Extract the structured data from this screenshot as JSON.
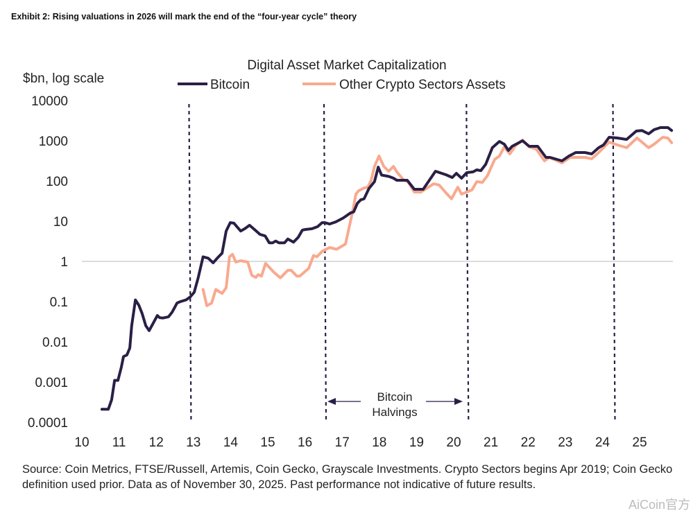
{
  "header": {
    "exhibit_title": "Exhibit 2: Rising valuations in 2026 will mark the end of the “four-year cycle” theory"
  },
  "chart_data": {
    "type": "line",
    "title": "Digital Asset Market Capitalization",
    "ylabel": "$bn, log scale",
    "xlabel": "",
    "y_scale": "log",
    "ylim": [
      0.0001,
      10000
    ],
    "xlim": [
      2010,
      2026
    ],
    "y_ticks": [
      "10000",
      "1000",
      "100",
      "10",
      "1",
      "0.1",
      "0.01",
      "0.001",
      "0.0001"
    ],
    "y_tick_values": [
      10000,
      1000,
      100,
      10,
      1,
      0.1,
      0.01,
      0.001,
      0.0001
    ],
    "x_ticks": [
      "10",
      "11",
      "12",
      "13",
      "14",
      "15",
      "16",
      "17",
      "18",
      "19",
      "20",
      "21",
      "22",
      "23",
      "24",
      "25"
    ],
    "x_tick_values": [
      2010,
      2011,
      2012,
      2013,
      2014,
      2015,
      2016,
      2017,
      2018,
      2019,
      2020,
      2021,
      2022,
      2023,
      2024,
      2025
    ],
    "reference_line": 1,
    "grid": false,
    "legend_placement": "top",
    "halvings": [
      2012.9,
      2016.53,
      2020.36,
      2024.3
    ],
    "annotation": {
      "line1": "Bitcoin",
      "line2": "Halvings"
    },
    "series": [
      {
        "name": "Bitcoin",
        "color": "#2a1f45",
        "points": [
          [
            2010.54,
            0.00021
          ],
          [
            2010.71,
            0.00021
          ],
          [
            2010.8,
            0.00036
          ],
          [
            2010.88,
            0.0011
          ],
          [
            2010.97,
            0.0011
          ],
          [
            2011.06,
            0.0023
          ],
          [
            2011.12,
            0.0043
          ],
          [
            2011.21,
            0.0047
          ],
          [
            2011.29,
            0.007
          ],
          [
            2011.34,
            0.025
          ],
          [
            2011.44,
            0.11
          ],
          [
            2011.53,
            0.082
          ],
          [
            2011.62,
            0.051
          ],
          [
            2011.72,
            0.025
          ],
          [
            2011.81,
            0.019
          ],
          [
            2011.88,
            0.025
          ],
          [
            2012.03,
            0.045
          ],
          [
            2012.09,
            0.04
          ],
          [
            2012.18,
            0.039
          ],
          [
            2012.33,
            0.042
          ],
          [
            2012.43,
            0.055
          ],
          [
            2012.56,
            0.092
          ],
          [
            2012.65,
            0.1
          ],
          [
            2012.8,
            0.11
          ],
          [
            2012.91,
            0.13
          ],
          [
            2013.02,
            0.17
          ],
          [
            2013.13,
            0.4
          ],
          [
            2013.26,
            1.3
          ],
          [
            2013.4,
            1.2
          ],
          [
            2013.53,
            0.92
          ],
          [
            2013.64,
            1.2
          ],
          [
            2013.77,
            1.6
          ],
          [
            2013.88,
            5.7
          ],
          [
            2013.99,
            9.2
          ],
          [
            2014.09,
            8.9
          ],
          [
            2014.27,
            5.7
          ],
          [
            2014.38,
            6.5
          ],
          [
            2014.51,
            7.9
          ],
          [
            2014.66,
            6.0
          ],
          [
            2014.79,
            4.7
          ],
          [
            2014.93,
            4.3
          ],
          [
            2015.04,
            2.9
          ],
          [
            2015.13,
            2.9
          ],
          [
            2015.21,
            3.2
          ],
          [
            2015.3,
            2.9
          ],
          [
            2015.45,
            2.9
          ],
          [
            2015.54,
            3.6
          ],
          [
            2015.69,
            3.0
          ],
          [
            2015.82,
            4.0
          ],
          [
            2015.93,
            6.0
          ],
          [
            2016.01,
            6.2
          ],
          [
            2016.19,
            6.5
          ],
          [
            2016.34,
            7.3
          ],
          [
            2016.46,
            9.2
          ],
          [
            2016.53,
            9.2
          ],
          [
            2016.66,
            8.5
          ],
          [
            2016.83,
            9.6
          ],
          [
            2017.03,
            12
          ],
          [
            2017.22,
            16
          ],
          [
            2017.31,
            17
          ],
          [
            2017.41,
            28
          ],
          [
            2017.5,
            34
          ],
          [
            2017.59,
            36
          ],
          [
            2017.72,
            65
          ],
          [
            2017.87,
            96
          ],
          [
            2017.97,
            220
          ],
          [
            2018.06,
            140
          ],
          [
            2018.25,
            130
          ],
          [
            2018.38,
            117
          ],
          [
            2018.47,
            104
          ],
          [
            2018.75,
            104
          ],
          [
            2018.94,
            62
          ],
          [
            2019.18,
            62
          ],
          [
            2019.51,
            174
          ],
          [
            2019.79,
            143
          ],
          [
            2019.96,
            122
          ],
          [
            2020.07,
            155
          ],
          [
            2020.21,
            117
          ],
          [
            2020.35,
            161
          ],
          [
            2020.52,
            168
          ],
          [
            2020.62,
            189
          ],
          [
            2020.73,
            181
          ],
          [
            2020.86,
            259
          ],
          [
            2021.04,
            673
          ],
          [
            2021.23,
            962
          ],
          [
            2021.36,
            820
          ],
          [
            2021.47,
            574
          ],
          [
            2021.57,
            728
          ],
          [
            2021.85,
            1000
          ],
          [
            2022.03,
            728
          ],
          [
            2022.26,
            728
          ],
          [
            2022.48,
            386
          ],
          [
            2022.59,
            386
          ],
          [
            2022.91,
            316
          ],
          [
            2023.1,
            418
          ],
          [
            2023.28,
            509
          ],
          [
            2023.53,
            509
          ],
          [
            2023.71,
            470
          ],
          [
            2023.9,
            673
          ],
          [
            2024.03,
            789
          ],
          [
            2024.18,
            1220
          ],
          [
            2024.4,
            1170
          ],
          [
            2024.65,
            1080
          ],
          [
            2024.91,
            1740
          ],
          [
            2025.06,
            1800
          ],
          [
            2025.24,
            1490
          ],
          [
            2025.39,
            1890
          ],
          [
            2025.56,
            2130
          ],
          [
            2025.76,
            2130
          ],
          [
            2025.86,
            1800
          ]
        ]
      },
      {
        "name": "Other Crypto Sectors Assets",
        "color": "#f9a98e",
        "points": [
          [
            2013.26,
            0.2
          ],
          [
            2013.36,
            0.079
          ],
          [
            2013.49,
            0.092
          ],
          [
            2013.6,
            0.2
          ],
          [
            2013.77,
            0.16
          ],
          [
            2013.88,
            0.22
          ],
          [
            2013.97,
            1.3
          ],
          [
            2014.05,
            1.5
          ],
          [
            2014.14,
            0.96
          ],
          [
            2014.27,
            1.04
          ],
          [
            2014.46,
            0.96
          ],
          [
            2014.57,
            0.45
          ],
          [
            2014.68,
            0.4
          ],
          [
            2014.74,
            0.47
          ],
          [
            2014.83,
            0.43
          ],
          [
            2014.94,
            0.89
          ],
          [
            2015.17,
            0.53
          ],
          [
            2015.34,
            0.39
          ],
          [
            2015.54,
            0.6
          ],
          [
            2015.63,
            0.6
          ],
          [
            2015.78,
            0.43
          ],
          [
            2015.86,
            0.43
          ],
          [
            2016.01,
            0.57
          ],
          [
            2016.1,
            0.67
          ],
          [
            2016.23,
            1.4
          ],
          [
            2016.32,
            1.3
          ],
          [
            2016.47,
            1.8
          ],
          [
            2016.66,
            2.2
          ],
          [
            2016.85,
            2.0
          ],
          [
            2017.0,
            2.4
          ],
          [
            2017.09,
            2.7
          ],
          [
            2017.22,
            9.6
          ],
          [
            2017.28,
            17
          ],
          [
            2017.37,
            47
          ],
          [
            2017.44,
            57
          ],
          [
            2017.59,
            67
          ],
          [
            2017.69,
            70
          ],
          [
            2017.78,
            104
          ],
          [
            2017.87,
            230
          ],
          [
            2017.99,
            418
          ],
          [
            2018.12,
            230
          ],
          [
            2018.25,
            174
          ],
          [
            2018.38,
            230
          ],
          [
            2018.47,
            168
          ],
          [
            2018.66,
            104
          ],
          [
            2018.77,
            96
          ],
          [
            2018.94,
            53
          ],
          [
            2019.12,
            53
          ],
          [
            2019.46,
            85
          ],
          [
            2019.61,
            79
          ],
          [
            2019.79,
            51
          ],
          [
            2019.94,
            36
          ],
          [
            2020.11,
            70
          ],
          [
            2020.21,
            47
          ],
          [
            2020.49,
            60
          ],
          [
            2020.62,
            96
          ],
          [
            2020.77,
            92
          ],
          [
            2020.91,
            137
          ],
          [
            2021.1,
            342
          ],
          [
            2021.23,
            418
          ],
          [
            2021.36,
            700
          ],
          [
            2021.51,
            470
          ],
          [
            2021.66,
            757
          ],
          [
            2021.85,
            1040
          ],
          [
            2022.03,
            700
          ],
          [
            2022.22,
            621
          ],
          [
            2022.44,
            316
          ],
          [
            2022.57,
            386
          ],
          [
            2022.91,
            281
          ],
          [
            2023.13,
            386
          ],
          [
            2023.34,
            386
          ],
          [
            2023.53,
            386
          ],
          [
            2023.71,
            356
          ],
          [
            2023.9,
            509
          ],
          [
            2024.18,
            925
          ],
          [
            2024.4,
            789
          ],
          [
            2024.65,
            673
          ],
          [
            2024.93,
            1170
          ],
          [
            2025.24,
            673
          ],
          [
            2025.39,
            820
          ],
          [
            2025.62,
            1220
          ],
          [
            2025.76,
            1170
          ],
          [
            2025.86,
            890
          ]
        ]
      }
    ]
  },
  "footer": {
    "source": "Source: Coin Metrics, FTSE/Russell, Artemis, Coin Gecko, Grayscale Investments. Crypto Sectors begins Apr 2019; Coin Gecko definition used prior. Data as of November 30, 2025. Past performance not indicative of future results.",
    "watermark": "AiCoin官方"
  }
}
